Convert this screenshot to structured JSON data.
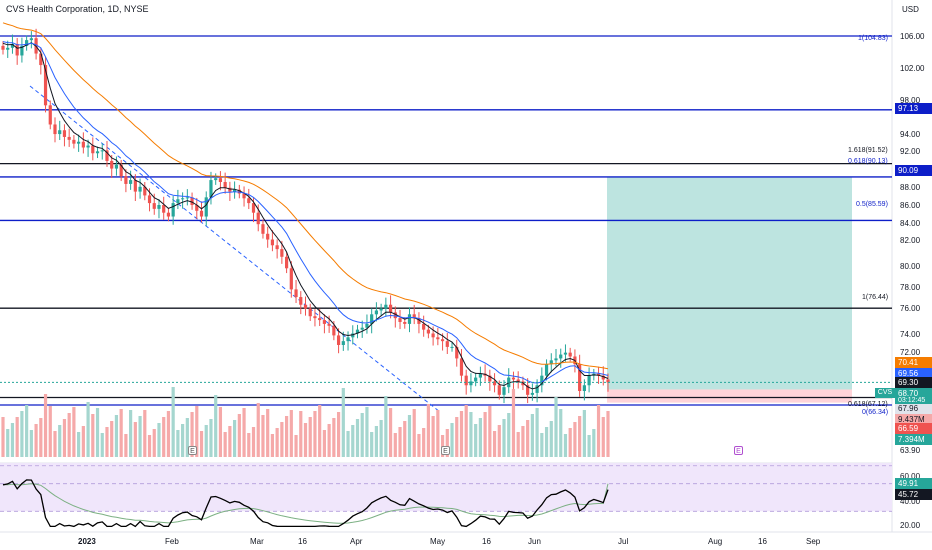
{
  "header": {
    "title": "CVS Health Corporation, 1D, NYSE",
    "currency": "USD"
  },
  "colors": {
    "up": "#26a69a",
    "down": "#ef5350",
    "volume_up": "#a5d6cf",
    "volume_down": "#f5a9a9",
    "ema_fast": "#131722",
    "ema_mid": "#2962ff",
    "ema_slow": "#f57c00",
    "fib_blue": "#0d1ec8",
    "fib_black": "#131722",
    "long_target": "#b2dfdb",
    "long_stop": "#ffcdd2",
    "rsi_band": "#f0e6fb",
    "rsi_line": "#000000",
    "rsi_ma": "#7cb083"
  },
  "axis": {
    "y_ticks": [
      "106.00",
      "102.00",
      "98.00",
      "94.00",
      "92.00",
      "88.00",
      "86.00",
      "84.00",
      "82.00",
      "80.00",
      "78.00",
      "76.00",
      "74.00",
      "72.00",
      "63.90"
    ],
    "x_ticks": [
      "2023",
      "Feb",
      "Mar",
      "16",
      "Apr",
      "May",
      "16",
      "Jun",
      "Jul",
      "Aug",
      "16",
      "Sep"
    ],
    "rsi_ticks": [
      "60.00",
      "40.00",
      "20.00"
    ]
  },
  "fib_levels": [
    {
      "label": "1(104.83)",
      "price": 104.83,
      "color": "blue"
    },
    {
      "label": "",
      "price": 97.13,
      "color": "blue"
    },
    {
      "label": "1.618(91.52)",
      "price": 91.52,
      "color": "black"
    },
    {
      "label": "0.618(90.13)",
      "price": 90.13,
      "color": "blue"
    },
    {
      "label": "0.5(85.59)",
      "price": 85.59,
      "color": "blue"
    },
    {
      "label": "1(76.44)",
      "price": 76.44,
      "color": "black"
    },
    {
      "label": "0.618(67.12)",
      "price": 67.12,
      "color": "black"
    },
    {
      "label": "0(66.34)",
      "price": 66.34,
      "color": "blue"
    }
  ],
  "price_tags": [
    {
      "text": "97.13",
      "kind": "fib"
    },
    {
      "text": "90.09",
      "kind": "fib"
    },
    {
      "text": "70.41",
      "kind": "ema_slow"
    },
    {
      "text": "69.56",
      "kind": "ema_mid"
    },
    {
      "text": "69.30",
      "kind": "ema_fast"
    },
    {
      "text": "CVS",
      "kind": "symbol"
    },
    {
      "text": "68.70",
      "kind": "last"
    },
    {
      "text": "03:12:45",
      "kind": "countdown"
    },
    {
      "text": "67.96",
      "kind": "stop_label"
    },
    {
      "text": "9.437M",
      "kind": "volume"
    },
    {
      "text": "66.59",
      "kind": "stop"
    },
    {
      "text": "7.394M",
      "kind": "volume2"
    }
  ],
  "rsi_tags": [
    {
      "text": "49.91",
      "kind": "rsi_ma"
    },
    {
      "text": "45.72",
      "kind": "rsi"
    }
  ],
  "earnings_markers": [
    "E",
    "E",
    "E"
  ],
  "chart_data": {
    "type": "candlestick",
    "symbol": "CVS",
    "interval": "1D",
    "exchange": "NYSE",
    "ylim": [
      63.9,
      107
    ],
    "last_price": 68.7,
    "position_target": 90.09,
    "position_entry": 67.96,
    "position_stop": 66.59,
    "closes": [
      103.4,
      103.6,
      104.0,
      102.8,
      103.8,
      104.4,
      104.6,
      103.0,
      101.8,
      97.6,
      95.6,
      94.6,
      95.0,
      94.3,
      94.0,
      93.6,
      93.8,
      93.2,
      93.4,
      92.6,
      92.8,
      92.9,
      91.8,
      91.0,
      91.4,
      90.2,
      89.4,
      89.8,
      88.6,
      89.1,
      88.2,
      87.4,
      86.8,
      87.2,
      86.4,
      86.0,
      87.4,
      87.8,
      87.9,
      88.0,
      87.2,
      86.6,
      86.0,
      88.0,
      89.8,
      90.0,
      89.6,
      89.0,
      88.6,
      88.8,
      88.4,
      87.9,
      87.4,
      86.4,
      85.2,
      84.2,
      83.6,
      83.0,
      82.6,
      81.8,
      80.6,
      78.4,
      77.6,
      76.8,
      76.4,
      75.6,
      75.4,
      75.2,
      74.8,
      74.6,
      73.6,
      72.6,
      73.0,
      73.4,
      73.8,
      74.2,
      74.4,
      74.8,
      75.8,
      76.2,
      76.4,
      76.8,
      76.0,
      75.4,
      75.0,
      74.8,
      75.8,
      75.4,
      74.8,
      74.2,
      73.8,
      73.4,
      73.2,
      73.0,
      72.4,
      72.4,
      71.2,
      69.4,
      68.4,
      68.8,
      69.2,
      69.6,
      69.4,
      68.8,
      68.4,
      67.4,
      68.2,
      69.2,
      69.0,
      68.8,
      68.4,
      67.4,
      67.6,
      68.4,
      69.4,
      70.6,
      71.0,
      71.2,
      71.6,
      71.8,
      71.4,
      70.6,
      67.8,
      68.4,
      69.4,
      69.6,
      69.4,
      69.0,
      68.7
    ],
    "volume_unit": "M",
    "rsi": {
      "period": 14,
      "last": 45.72,
      "ma_last": 49.91,
      "ylim": [
        15,
        65
      ],
      "bands": [
        30,
        70
      ]
    }
  }
}
